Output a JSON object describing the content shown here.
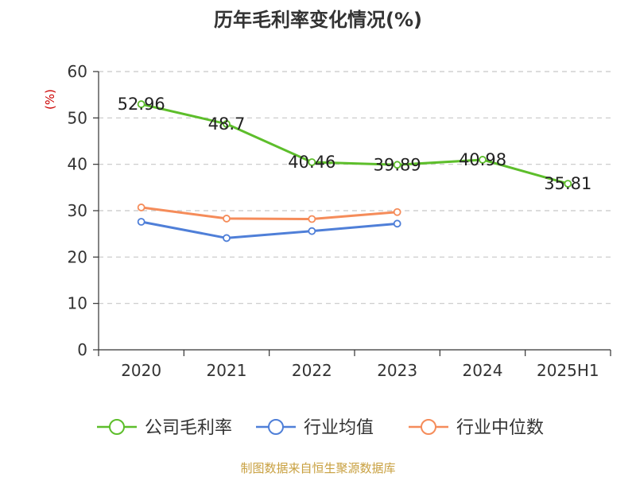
{
  "chart_data": {
    "type": "line",
    "title": "历年毛利率变化情况(%)",
    "unit": "(%)",
    "categories": [
      "2020",
      "2021",
      "2022",
      "2023",
      "2024",
      "2025H1"
    ],
    "ylim": [
      0,
      60
    ],
    "yticks": [
      0,
      10,
      20,
      30,
      40,
      50,
      60
    ],
    "grid": true,
    "legend_position": "bottom",
    "series": [
      {
        "name": "公司毛利率",
        "color": "#5dbe2b",
        "values": [
          52.96,
          48.7,
          40.46,
          39.89,
          40.98,
          35.81
        ],
        "labels": [
          "52.96",
          "48.7",
          "40.46",
          "39.89",
          "40.98",
          "35.81"
        ]
      },
      {
        "name": "行业均值",
        "color": "#4f7fd8",
        "values": [
          27.6,
          24.1,
          25.6,
          27.2,
          null,
          null
        ]
      },
      {
        "name": "行业中位数",
        "color": "#f58c5a",
        "values": [
          30.7,
          28.3,
          28.2,
          29.7,
          null,
          null
        ]
      }
    ]
  },
  "source": "制图数据来自恒生聚源数据库"
}
